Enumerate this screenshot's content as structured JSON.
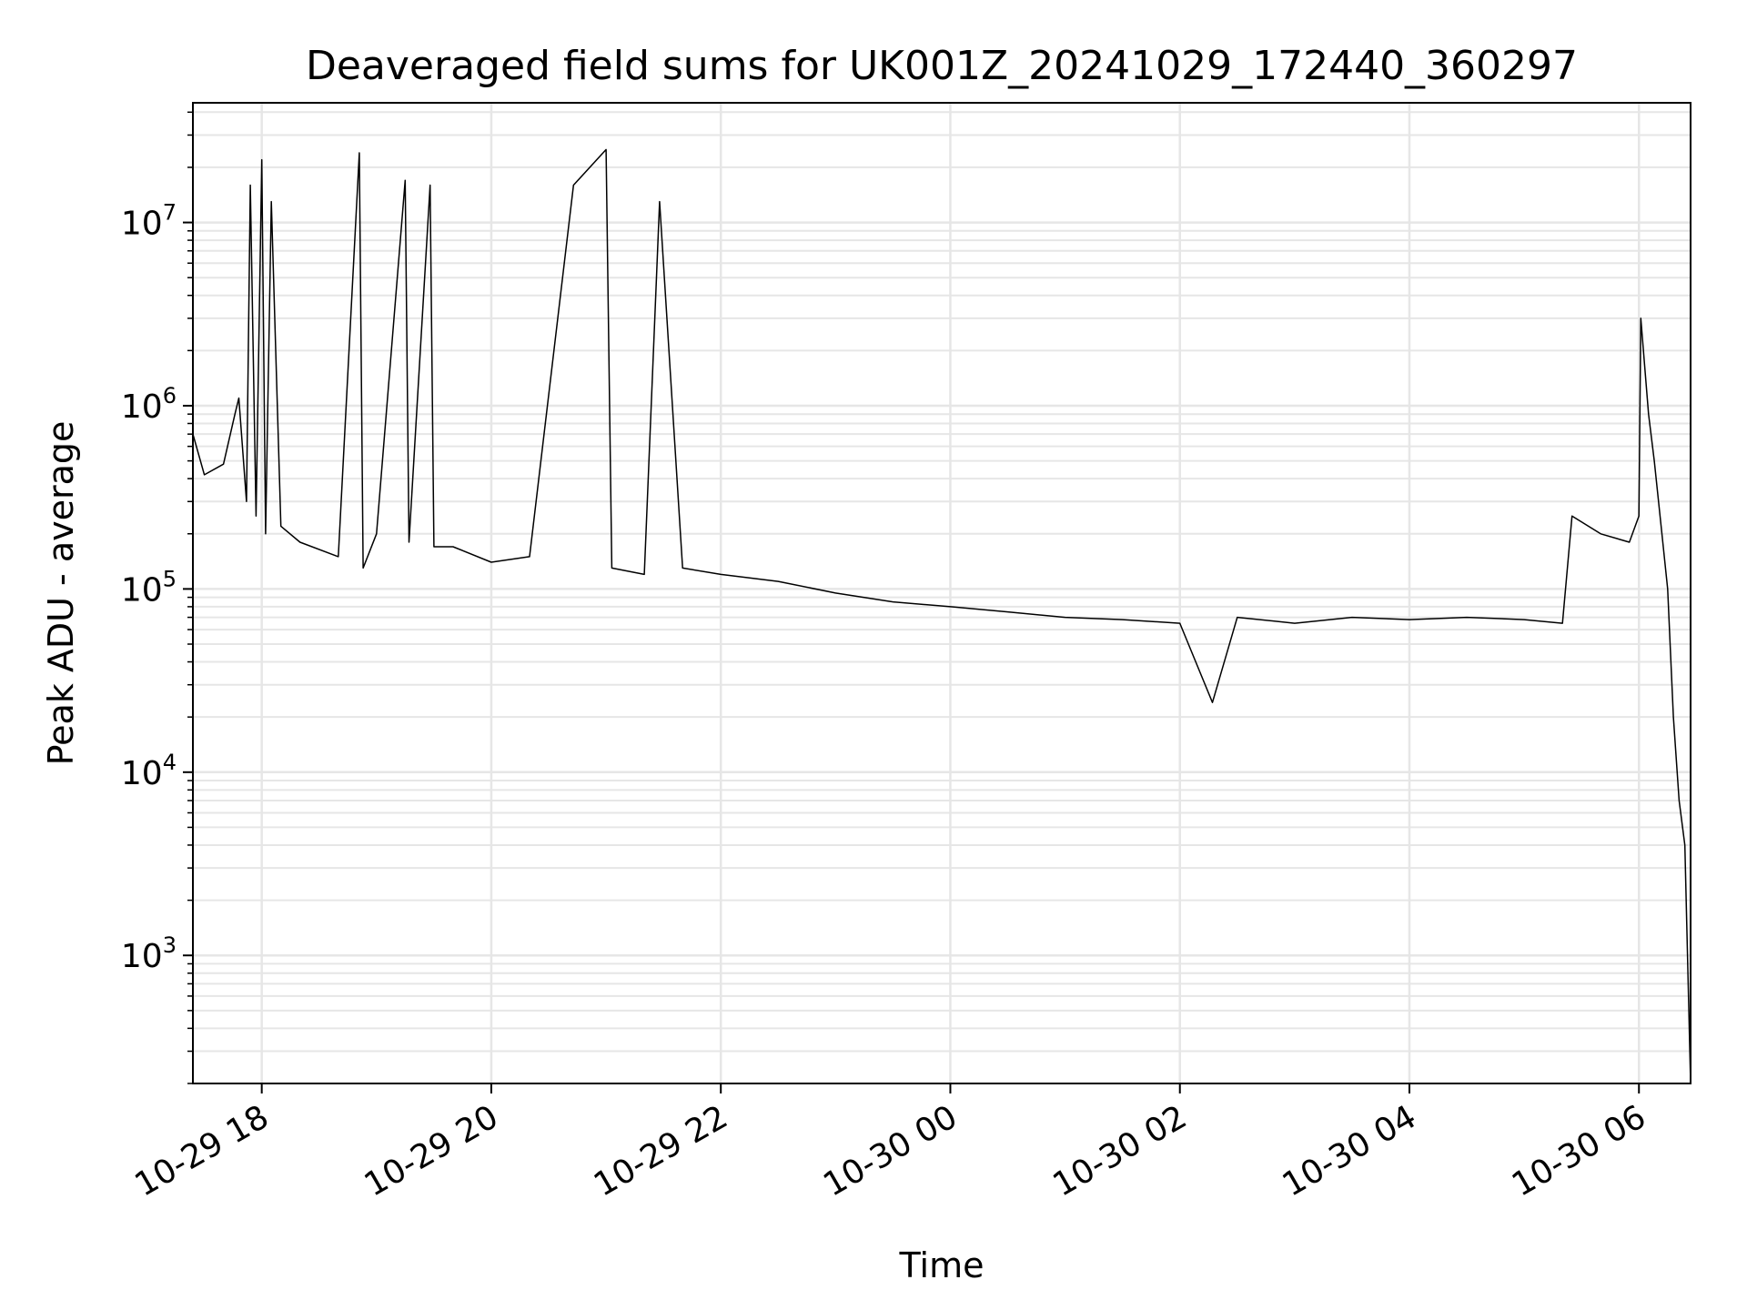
{
  "chart_data": {
    "type": "line",
    "title": "Deaveraged field sums for UK001Z_20241029_172440_360297",
    "xlabel": "Time",
    "ylabel": "Peak ADU - average",
    "yscale": "log",
    "ylim": [
      200,
      45000000
    ],
    "xlim": [
      "2024-10-29 17:24",
      "2024-10-30 06:27"
    ],
    "grid": "major and minor",
    "legend": "none",
    "line_color": "#000000",
    "grid_color": "#e6e6e6",
    "x_ticks": [
      {
        "value": "2024-10-29 18:00",
        "label": "10-29 18"
      },
      {
        "value": "2024-10-29 20:00",
        "label": "10-29 20"
      },
      {
        "value": "2024-10-29 22:00",
        "label": "10-29 22"
      },
      {
        "value": "2024-10-30 00:00",
        "label": "10-30 00"
      },
      {
        "value": "2024-10-30 02:00",
        "label": "10-30 02"
      },
      {
        "value": "2024-10-30 04:00",
        "label": "10-30 04"
      },
      {
        "value": "2024-10-30 06:00",
        "label": "10-30 06"
      }
    ],
    "y_ticks": [
      {
        "value": 1000,
        "base": "10",
        "exp": "3"
      },
      {
        "value": 10000,
        "base": "10",
        "exp": "4"
      },
      {
        "value": 100000,
        "base": "10",
        "exp": "5"
      },
      {
        "value": 1000000,
        "base": "10",
        "exp": "6"
      },
      {
        "value": 10000000,
        "base": "10",
        "exp": "7"
      }
    ],
    "series": [
      {
        "x": [
          "2024-10-29 17:24",
          "2024-10-29 17:30",
          "2024-10-29 17:40",
          "2024-10-29 17:46",
          "2024-10-29 17:48",
          "2024-10-29 17:52",
          "2024-10-29 17:54",
          "2024-10-29 17:57",
          "2024-10-29 18:00",
          "2024-10-29 18:02",
          "2024-10-29 18:05",
          "2024-10-29 18:10",
          "2024-10-29 18:20",
          "2024-10-29 18:40",
          "2024-10-29 18:51",
          "2024-10-29 18:53",
          "2024-10-29 19:00",
          "2024-10-29 19:15",
          "2024-10-29 19:17",
          "2024-10-29 19:28",
          "2024-10-29 19:30",
          "2024-10-29 19:40",
          "2024-10-29 20:00",
          "2024-10-29 20:20",
          "2024-10-29 20:43",
          "2024-10-29 21:00",
          "2024-10-29 21:03",
          "2024-10-29 21:20",
          "2024-10-29 21:28",
          "2024-10-29 21:40",
          "2024-10-29 22:00",
          "2024-10-29 22:30",
          "2024-10-29 23:00",
          "2024-10-29 23:30",
          "2024-10-30 00:00",
          "2024-10-30 00:30",
          "2024-10-30 01:00",
          "2024-10-30 01:30",
          "2024-10-30 02:00",
          "2024-10-30 02:17",
          "2024-10-30 02:30",
          "2024-10-30 03:00",
          "2024-10-30 03:30",
          "2024-10-30 04:00",
          "2024-10-30 04:30",
          "2024-10-30 05:00",
          "2024-10-30 05:20",
          "2024-10-30 05:25",
          "2024-10-30 05:40",
          "2024-10-30 05:55",
          "2024-10-30 06:00",
          "2024-10-30 06:01",
          "2024-10-30 06:05",
          "2024-10-30 06:08",
          "2024-10-30 06:12",
          "2024-10-30 06:15",
          "2024-10-30 06:18",
          "2024-10-30 06:21",
          "2024-10-30 06:24",
          "2024-10-30 06:27"
        ],
        "y": [
          700000,
          420000,
          480000,
          900000,
          1100000,
          300000,
          16000000,
          250000,
          22000000,
          200000,
          13000000,
          220000,
          180000,
          150000,
          24000000,
          130000,
          200000,
          17000000,
          180000,
          16000000,
          170000,
          170000,
          140000,
          150000,
          16000000,
          25000000,
          130000,
          120000,
          13000000,
          130000,
          120000,
          110000,
          95000,
          85000,
          80000,
          75000,
          70000,
          68000,
          65000,
          24000,
          70000,
          65000,
          70000,
          68000,
          70000,
          68000,
          65000,
          250000,
          200000,
          180000,
          250000,
          3000000,
          900000,
          500000,
          200000,
          100000,
          20000,
          7000,
          4000,
          200
        ]
      }
    ]
  }
}
